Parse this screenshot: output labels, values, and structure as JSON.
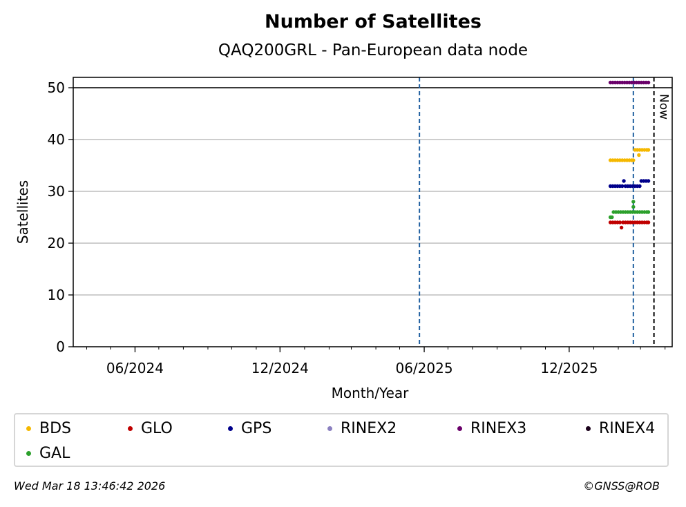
{
  "chart_data": {
    "type": "scatter",
    "title": "Number of Satellites",
    "subtitle": "QAQ200GRL - Pan-European data node",
    "xlabel": "Month/Year",
    "ylabel": "Satellites",
    "xlim": [
      "2024-03-15",
      "2026-04-10"
    ],
    "ylim": [
      0,
      52
    ],
    "yticks": [
      0,
      10,
      20,
      30,
      40,
      50
    ],
    "xticks": [
      {
        "date": "2024-06-01",
        "label": "06/2024"
      },
      {
        "date": "2024-12-01",
        "label": "12/2024"
      },
      {
        "date": "2025-06-01",
        "label": "06/2025"
      },
      {
        "date": "2025-12-01",
        "label": "12/2025"
      }
    ],
    "grid": "horizontal",
    "reference_lines": [
      {
        "type": "horizontal",
        "y": 50,
        "color": "#000000",
        "style": "solid"
      },
      {
        "type": "vertical",
        "x": "2025-05-26",
        "color": "#1f5fa0",
        "style": "dashed"
      },
      {
        "type": "vertical",
        "x": "2026-02-20",
        "color": "#1f5fa0",
        "style": "dashed"
      },
      {
        "type": "vertical",
        "x": "2026-03-18",
        "color": "#000000",
        "style": "dashed",
        "label": "Now"
      }
    ],
    "series": [
      {
        "name": "BDS",
        "color": "#f5b800",
        "points": [
          [
            "2026-01-22",
            36
          ],
          [
            "2026-01-25",
            36
          ],
          [
            "2026-01-28",
            36
          ],
          [
            "2026-01-31",
            36
          ],
          [
            "2026-02-03",
            36
          ],
          [
            "2026-02-06",
            36
          ],
          [
            "2026-02-09",
            36
          ],
          [
            "2026-02-12",
            36
          ],
          [
            "2026-02-15",
            36
          ],
          [
            "2026-02-18",
            36
          ],
          [
            "2026-02-20",
            36
          ],
          [
            "2026-02-22",
            38
          ],
          [
            "2026-02-25",
            38
          ],
          [
            "2026-02-27",
            37
          ],
          [
            "2026-02-28",
            38
          ],
          [
            "2026-03-03",
            38
          ],
          [
            "2026-03-06",
            38
          ],
          [
            "2026-03-09",
            38
          ],
          [
            "2026-03-11",
            38
          ]
        ]
      },
      {
        "name": "GLO",
        "color": "#c00000",
        "points": [
          [
            "2026-01-22",
            24
          ],
          [
            "2026-01-25",
            24
          ],
          [
            "2026-01-28",
            24
          ],
          [
            "2026-01-31",
            24
          ],
          [
            "2026-02-03",
            24
          ],
          [
            "2026-02-05",
            23
          ],
          [
            "2026-02-07",
            24
          ],
          [
            "2026-02-10",
            24
          ],
          [
            "2026-02-13",
            24
          ],
          [
            "2026-02-16",
            24
          ],
          [
            "2026-02-19",
            24
          ],
          [
            "2026-02-22",
            24
          ],
          [
            "2026-02-25",
            24
          ],
          [
            "2026-02-28",
            24
          ],
          [
            "2026-03-03",
            24
          ],
          [
            "2026-03-06",
            24
          ],
          [
            "2026-03-09",
            24
          ],
          [
            "2026-03-11",
            24
          ]
        ]
      },
      {
        "name": "GPS",
        "color": "#00008b",
        "points": [
          [
            "2026-01-22",
            31
          ],
          [
            "2026-01-25",
            31
          ],
          [
            "2026-01-28",
            31
          ],
          [
            "2026-01-31",
            31
          ],
          [
            "2026-02-03",
            31
          ],
          [
            "2026-02-06",
            31
          ],
          [
            "2026-02-08",
            32
          ],
          [
            "2026-02-10",
            31
          ],
          [
            "2026-02-13",
            31
          ],
          [
            "2026-02-16",
            31
          ],
          [
            "2026-02-19",
            31
          ],
          [
            "2026-02-22",
            31
          ],
          [
            "2026-02-25",
            31
          ],
          [
            "2026-02-28",
            31
          ],
          [
            "2026-03-02",
            32
          ],
          [
            "2026-03-05",
            32
          ],
          [
            "2026-03-08",
            32
          ],
          [
            "2026-03-11",
            32
          ]
        ]
      },
      {
        "name": "RINEX2",
        "color": "#8b80c0",
        "points": []
      },
      {
        "name": "RINEX3",
        "color": "#6a006a",
        "points": [
          [
            "2026-01-22",
            51
          ],
          [
            "2026-01-25",
            51
          ],
          [
            "2026-01-28",
            51
          ],
          [
            "2026-01-31",
            51
          ],
          [
            "2026-02-03",
            51
          ],
          [
            "2026-02-06",
            51
          ],
          [
            "2026-02-09",
            51
          ],
          [
            "2026-02-12",
            51
          ],
          [
            "2026-02-15",
            51
          ],
          [
            "2026-02-18",
            51
          ],
          [
            "2026-02-21",
            51
          ],
          [
            "2026-02-24",
            51
          ],
          [
            "2026-02-27",
            51
          ],
          [
            "2026-03-02",
            51
          ],
          [
            "2026-03-05",
            51
          ],
          [
            "2026-03-08",
            51
          ],
          [
            "2026-03-11",
            51
          ]
        ]
      },
      {
        "name": "RINEX4",
        "color": "#1a001a",
        "points": []
      },
      {
        "name": "GAL",
        "color": "#2ca02c",
        "points": [
          [
            "2026-01-22",
            25
          ],
          [
            "2026-01-24",
            25
          ],
          [
            "2026-01-26",
            26
          ],
          [
            "2026-01-29",
            26
          ],
          [
            "2026-02-01",
            26
          ],
          [
            "2026-02-04",
            26
          ],
          [
            "2026-02-07",
            26
          ],
          [
            "2026-02-10",
            26
          ],
          [
            "2026-02-13",
            26
          ],
          [
            "2026-02-16",
            26
          ],
          [
            "2026-02-19",
            26
          ],
          [
            "2026-02-20",
            27
          ],
          [
            "2026-02-20",
            28
          ],
          [
            "2026-02-22",
            26
          ],
          [
            "2026-02-25",
            26
          ],
          [
            "2026-02-28",
            26
          ],
          [
            "2026-03-03",
            26
          ],
          [
            "2026-03-06",
            26
          ],
          [
            "2026-03-09",
            26
          ],
          [
            "2026-03-11",
            26
          ]
        ]
      }
    ]
  },
  "footer": {
    "timestamp": "Wed Mar 18 13:46:42 2026",
    "copyright": "©GNSS@ROB"
  }
}
